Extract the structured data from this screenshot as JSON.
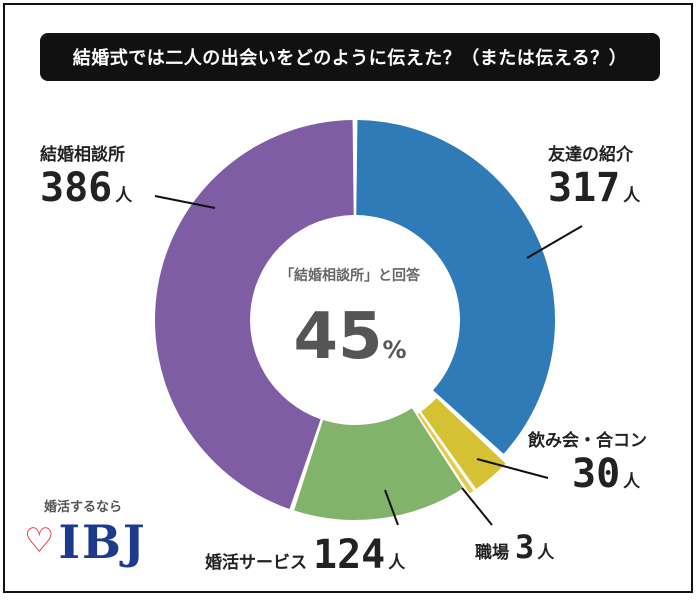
{
  "title": "結婚式では二人の出会いをどのように伝えた？（または伝える？）",
  "center": {
    "caption": "「結婚相談所」と回答",
    "percent": "45",
    "percent_unit": "%"
  },
  "unit": "人",
  "brand": {
    "tagline": "婚活するなら",
    "logo": "IBJ"
  },
  "chart_data": {
    "type": "pie",
    "donut": true,
    "slices": [
      {
        "label": "友達の紹介",
        "value": 317,
        "color": "#2e7bb8"
      },
      {
        "label": "飲み会・合コン",
        "value": 30,
        "color": "#d4c232"
      },
      {
        "label": "職場",
        "value": 3,
        "color": "#e8c94a"
      },
      {
        "label": "婚活サービス",
        "value": 124,
        "color": "#82b36a"
      },
      {
        "label": "結婚相談所",
        "value": 386,
        "color": "#7e5da5"
      }
    ]
  }
}
